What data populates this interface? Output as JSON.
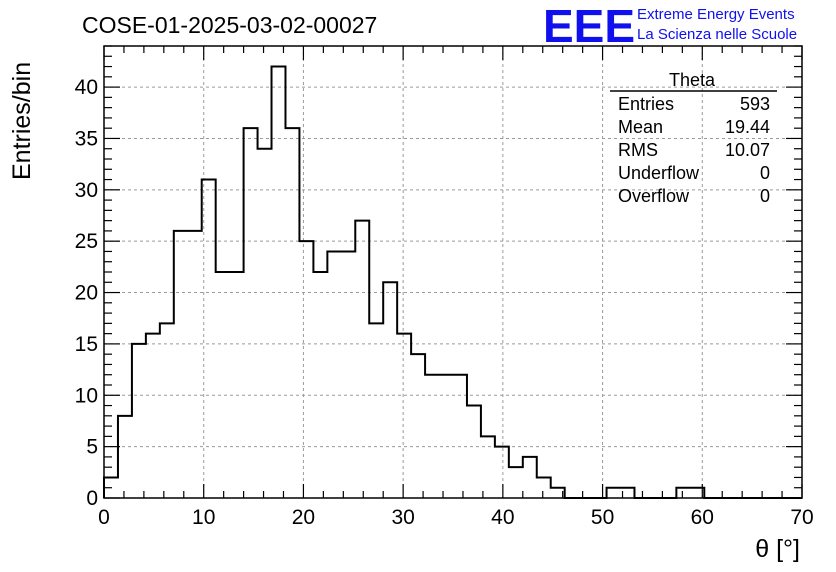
{
  "chart_data": {
    "type": "histogram",
    "title": "COSE-01-2025-03-02-00027",
    "xlabel": "θ [°]",
    "ylabel": "Entries/bin",
    "xlim": [
      0,
      70
    ],
    "ylim": [
      0,
      44
    ],
    "x_ticks": [
      0,
      10,
      20,
      30,
      40,
      50,
      60,
      70
    ],
    "y_ticks": [
      0,
      5,
      10,
      15,
      20,
      25,
      30,
      35,
      40
    ],
    "grid": true,
    "bin_edges_start": 0,
    "bin_width": 1.4,
    "values": [
      2,
      8,
      15,
      16,
      17,
      26,
      26,
      31,
      22,
      22,
      36,
      34,
      42,
      36,
      25,
      22,
      24,
      24,
      27,
      17,
      21,
      16,
      14,
      12,
      12,
      12,
      9,
      6,
      5,
      3,
      4,
      2,
      1,
      0,
      0,
      0,
      1,
      1,
      0,
      0,
      0,
      1,
      1,
      0,
      0,
      0,
      0,
      0,
      0,
      0
    ],
    "stats": {
      "name": "Theta",
      "rows": [
        {
          "label": "Entries",
          "value": "593"
        },
        {
          "label": "Mean",
          "value": "19.44"
        },
        {
          "label": "RMS",
          "value": "10.07"
        },
        {
          "label": "Underflow",
          "value": "0"
        },
        {
          "label": "Overflow",
          "value": "0"
        }
      ]
    }
  },
  "logo": {
    "mark": "EEE",
    "line1": "Extreme Energy Events",
    "line2": "La Scienza nelle Scuole",
    "color": "#1010ee"
  }
}
